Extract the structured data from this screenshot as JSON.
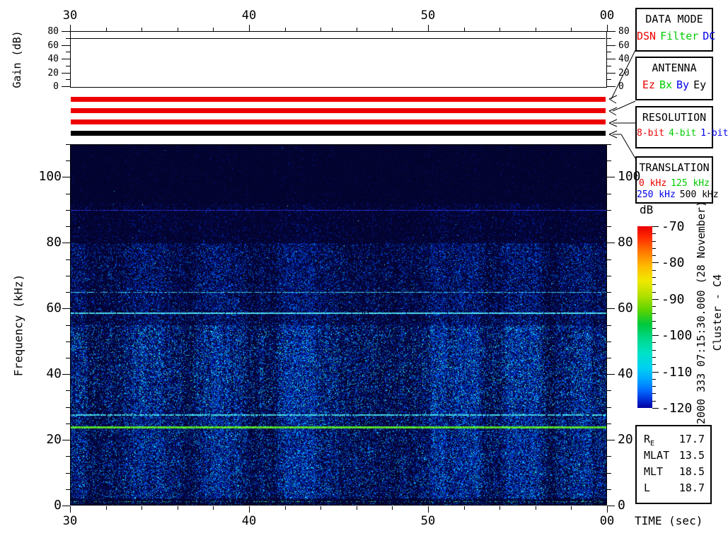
{
  "labels": {
    "time_axis": "TIME (sec)"
  },
  "colors": {
    "red": "#ee0000",
    "green": "#00cc00",
    "blue": "#0000ee",
    "black": "#000000",
    "bar_red": "#ee0000",
    "bar_black": "#000000",
    "spec_background": "#01012a"
  },
  "panels": [
    {
      "id": "data-mode",
      "title": "DATA MODE",
      "font": 15,
      "rows": [
        [
          {
            "label": "DSN",
            "color": "#ee0000"
          },
          {
            "label": "Filter",
            "color": "#00cc00"
          },
          {
            "label": "DC",
            "color": "#0000ee"
          }
        ]
      ]
    },
    {
      "id": "antenna",
      "title": "ANTENNA",
      "font": 15,
      "rows": [
        [
          {
            "label": "Ez",
            "color": "#ee0000"
          },
          {
            "label": "Bx",
            "color": "#00cc00"
          },
          {
            "label": "By",
            "color": "#0000ee"
          },
          {
            "label": "Ey",
            "color": "#000000"
          }
        ]
      ]
    },
    {
      "id": "resolution",
      "title": "RESOLUTION",
      "font": 13,
      "rows": [
        [
          {
            "label": "8-bit",
            "color": "#ee0000"
          },
          {
            "label": "4-bit",
            "color": "#00cc00"
          },
          {
            "label": "1-bit",
            "color": "#0000ee"
          }
        ]
      ]
    },
    {
      "id": "translation",
      "title": "TRANSLATION",
      "font": 13,
      "rows": [
        [
          {
            "label": "0 kHz",
            "color": "#ee0000"
          },
          {
            "label": "125 kHz",
            "color": "#00cc00"
          }
        ],
        [
          {
            "label": "250 kHz",
            "color": "#0000ee"
          },
          {
            "label": "500 kHz",
            "color": "#000000"
          }
        ]
      ]
    }
  ],
  "status_bars": [
    {
      "panel": "DATA MODE",
      "value": "DSN",
      "color": "#ee0000"
    },
    {
      "panel": "ANTENNA",
      "value": "Ez",
      "color": "#ee0000"
    },
    {
      "panel": "RESOLUTION",
      "value": "8-bit",
      "color": "#ee0000"
    },
    {
      "panel": "TRANSLATION",
      "value": "500 kHz",
      "color": "#000000"
    }
  ],
  "colorbar": {
    "label": "dB",
    "max": -70,
    "min": -120,
    "major_step": 10,
    "minor_step": 2,
    "ticklabels": [
      "-70",
      "-80",
      "-90",
      "-100",
      "-110",
      "-120"
    ],
    "tickvalues": [
      -70,
      -80,
      -90,
      -100,
      -110,
      -120
    ],
    "gradient": [
      {
        "p": 0,
        "c": "#e80000"
      },
      {
        "p": 6,
        "c": "#ff2a00"
      },
      {
        "p": 14,
        "c": "#ff7700"
      },
      {
        "p": 22,
        "c": "#ffbb00"
      },
      {
        "p": 30,
        "c": "#f0e800"
      },
      {
        "p": 38,
        "c": "#b4e000"
      },
      {
        "p": 46,
        "c": "#5ed400"
      },
      {
        "p": 54,
        "c": "#00c83c"
      },
      {
        "p": 62,
        "c": "#00d88c"
      },
      {
        "p": 70,
        "c": "#00e2c8"
      },
      {
        "p": 78,
        "c": "#00d0f2"
      },
      {
        "p": 84,
        "c": "#00a8ff"
      },
      {
        "p": 90,
        "c": "#0070ff"
      },
      {
        "p": 95,
        "c": "#0034dd"
      },
      {
        "p": 100,
        "c": "#0000a0"
      }
    ]
  },
  "side_text": {
    "timestamp": "2000 333 07:15:30.000 (28 November)",
    "spacecraft": "Cluster - C4"
  },
  "ephemeris": {
    "rows": [
      {
        "label": "R",
        "sub": "E",
        "value": "17.7"
      },
      {
        "label": "MLAT",
        "sub": "",
        "value": "13.5"
      },
      {
        "label": "MLT",
        "sub": "",
        "value": "18.5"
      },
      {
        "label": "L",
        "sub": "",
        "value": "18.7"
      }
    ]
  },
  "chart_data": [
    {
      "type": "line",
      "name": "receiver-gain",
      "ylabel": "Gain (dB)",
      "ylim": [
        0,
        80
      ],
      "ytickvalues": [
        80,
        60,
        40,
        20,
        0
      ],
      "yticklabels": [
        "80",
        "60",
        "40",
        "20",
        "0"
      ],
      "y_minor_step": 10,
      "xlim": [
        30,
        60
      ],
      "x_major_ticks": [
        30,
        40,
        50,
        60
      ],
      "xticklabels": [
        "30",
        "40",
        "50",
        "00"
      ],
      "x_minor_step": 2,
      "grid": false,
      "series": [
        {
          "name": "gain",
          "x": [
            30,
            60
          ],
          "y": [
            70,
            70
          ],
          "color": "#000000"
        }
      ]
    },
    {
      "type": "heatmap",
      "subtype": "spectrogram",
      "name": "wbd-spectrogram",
      "ylabel": "Frequency (kHz)",
      "xlabel": "TIME (sec)",
      "ylim": [
        0,
        110
      ],
      "ytickvalues": [
        100,
        80,
        60,
        40,
        20,
        0
      ],
      "yticklabels": [
        "100",
        "80",
        "60",
        "40",
        "20",
        "0"
      ],
      "y_minor_step": 5,
      "xlim": [
        30,
        60
      ],
      "x_major_ticks": [
        30,
        40,
        50,
        60
      ],
      "xticklabels": [
        "30",
        "40",
        "50",
        "00"
      ],
      "x_minor_step": 2,
      "colorbar_range_dB": [
        -120,
        -70
      ],
      "background_color": "#01012a",
      "noise_bands": [
        {
          "f_min": 92,
          "f_max": 110,
          "density": 0.015,
          "intensity": 0.3
        },
        {
          "f_min": 80,
          "f_max": 92,
          "density": 0.1,
          "intensity": 0.45
        },
        {
          "f_min": 55,
          "f_max": 80,
          "density": 0.34,
          "intensity": 0.75
        },
        {
          "f_min": 30,
          "f_max": 55,
          "density": 0.52,
          "intensity": 0.95
        },
        {
          "f_min": 2.2,
          "f_max": 30,
          "density": 0.5,
          "intensity": 0.9
        },
        {
          "f_min": 0,
          "f_max": 2.2,
          "density": 0.16,
          "intensity": 0.85
        }
      ],
      "spectral_lines": [
        {
          "freq_khz": 90,
          "color": "#2a35dd",
          "density": 0.9,
          "width": 1,
          "note": "faint blue narrowband line"
        },
        {
          "freq_khz": 65,
          "color": "#45d0f5",
          "density": 0.75,
          "width": 1,
          "note": "cyan line"
        },
        {
          "freq_khz": 58.5,
          "color": "#50e0ff",
          "density": 0.97,
          "width": 2,
          "note": "bright cyan line"
        },
        {
          "freq_khz": 27.5,
          "color": "#45d8e8",
          "density": 0.85,
          "width": 2,
          "note": "cyan line"
        },
        {
          "freq_khz": 24,
          "color": "#58e22e",
          "density": 1.0,
          "width": 3,
          "note": "bright green line"
        },
        {
          "freq_khz": 1.3,
          "color": "#33dd77",
          "density": 0.3,
          "width": 1,
          "note": "speckled line near bottom"
        }
      ]
    }
  ]
}
